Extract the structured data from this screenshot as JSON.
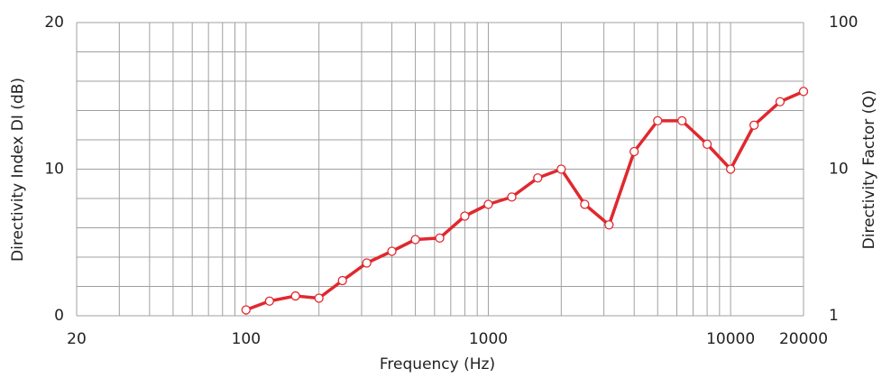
{
  "chart_data": {
    "type": "line",
    "xlabel": "Frequency (Hz)",
    "ylabel": "Directivity Index DI (dB)",
    "y2label": "Directivity Factor (Q)",
    "xscale": "log",
    "y2scale": "log",
    "grid": true,
    "color": "#e0282e",
    "xlim": [
      20,
      20000
    ],
    "xticks": [
      20,
      100,
      1000,
      10000,
      20000
    ],
    "ylim": [
      0,
      20
    ],
    "yticks": [
      0,
      10,
      20
    ],
    "y2lim": [
      1,
      100
    ],
    "y2ticks": [
      1,
      10,
      100
    ],
    "x": [
      100,
      125,
      160,
      200,
      250,
      315,
      400,
      500,
      630,
      800,
      1000,
      1250,
      1600,
      2000,
      2500,
      3150,
      4000,
      5000,
      6300,
      8000,
      10000,
      12500,
      16000,
      20000
    ],
    "values": [
      0.4,
      1.0,
      1.35,
      1.2,
      2.4,
      3.6,
      4.4,
      5.2,
      5.3,
      6.8,
      7.6,
      8.1,
      9.4,
      10.0,
      7.6,
      6.2,
      11.2,
      13.3,
      13.3,
      11.7,
      10.0,
      13.0,
      14.6,
      15.3
    ]
  }
}
